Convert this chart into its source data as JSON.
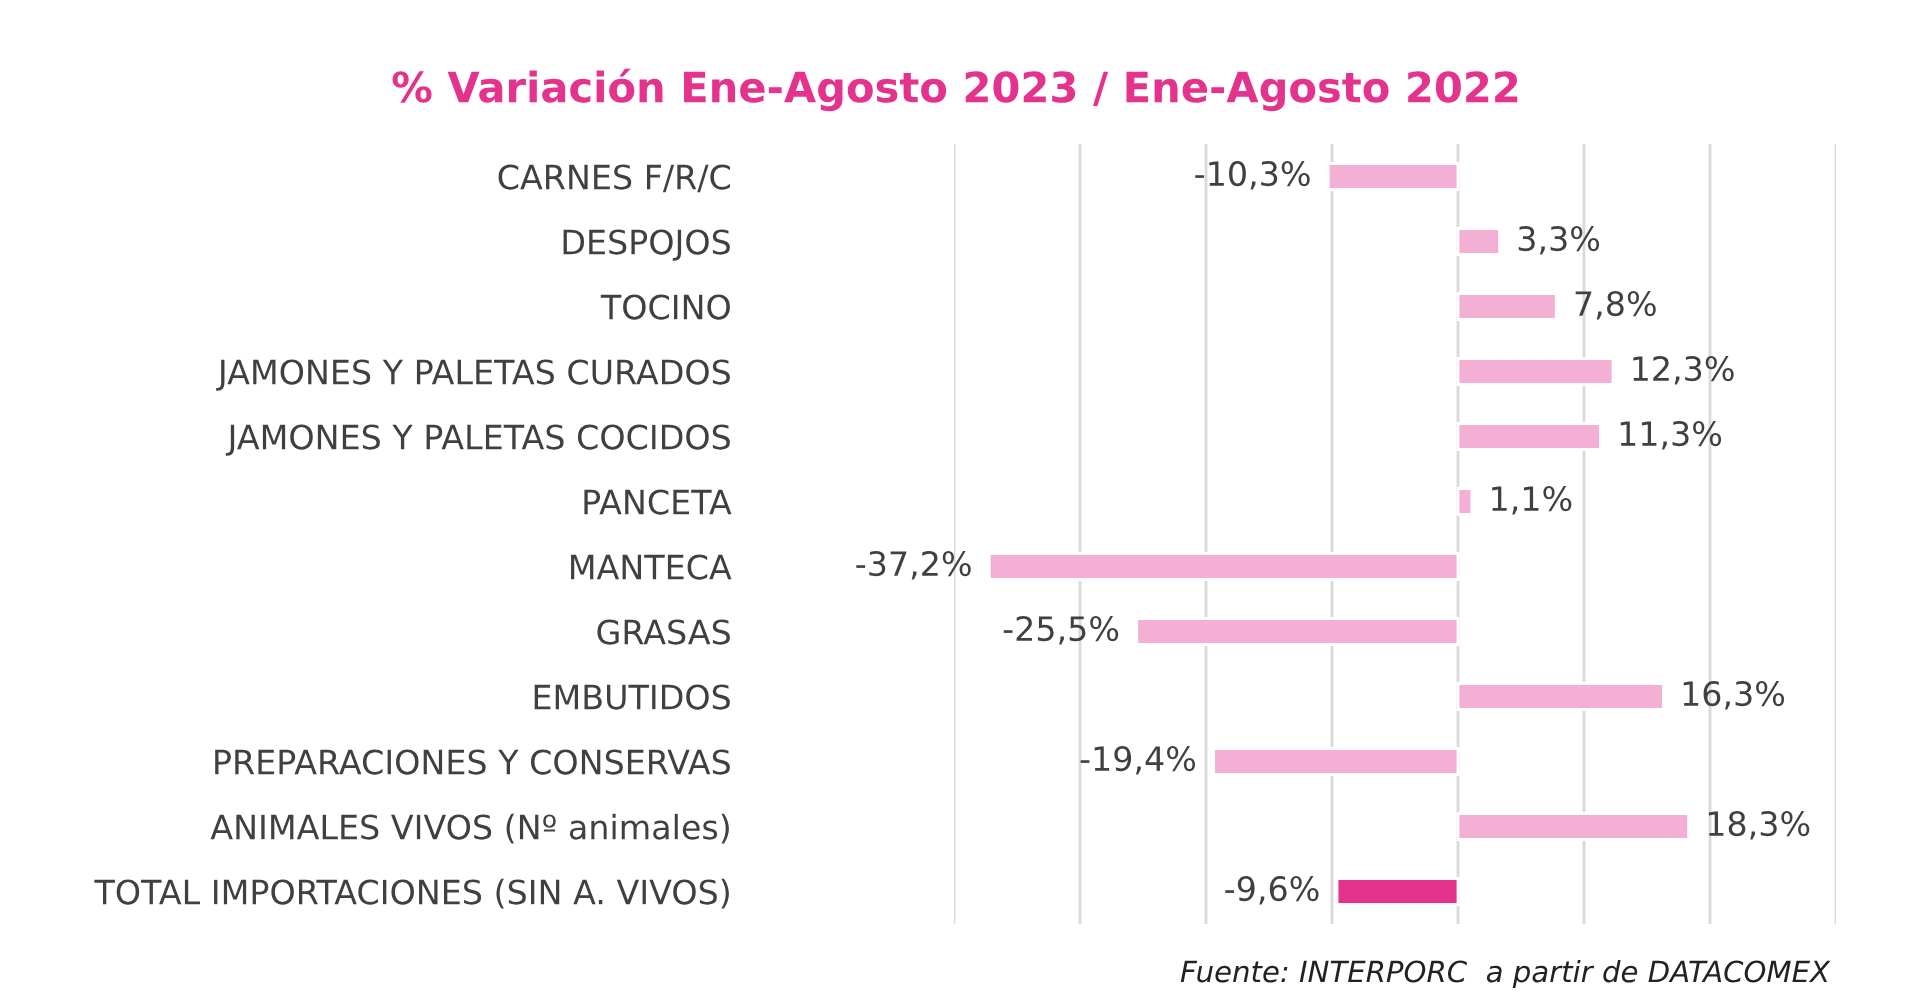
{
  "chart_data": {
    "type": "bar",
    "orientation": "horizontal",
    "title": "% Variación Ene-Agosto 2023 / Ene-Agosto 2022",
    "categories": [
      "CARNES F/R/C",
      "DESPOJOS",
      "TOCINO",
      "JAMONES Y PALETAS CURADOS",
      "JAMONES Y PALETAS COCIDOS",
      "PANCETA",
      "MANTECA",
      "GRASAS",
      "EMBUTIDOS",
      "PREPARACIONES Y CONSERVAS",
      "ANIMALES VIVOS (Nº animales)",
      "TOTAL IMPORTACIONES (SIN A. VIVOS)"
    ],
    "values": [
      -10.3,
      3.3,
      7.8,
      12.3,
      11.3,
      1.1,
      -37.2,
      -25.5,
      16.3,
      -19.4,
      18.3,
      -9.6
    ],
    "value_labels": [
      "-10,3%",
      "3,3%",
      "7,8%",
      "12,3%",
      "11,3%",
      "1,1%",
      "-37,2%",
      "-25,5%",
      "16,3%",
      "-19,4%",
      "18,3%",
      "-9,6%"
    ],
    "colors": [
      "#f4b0d4",
      "#f4b0d4",
      "#f4b0d4",
      "#f4b0d4",
      "#f4b0d4",
      "#f4b0d4",
      "#f4b0d4",
      "#f4b0d4",
      "#f4b0d4",
      "#f4b0d4",
      "#f4b0d4",
      "#e3338c"
    ],
    "xlim": [
      -40,
      30
    ],
    "xticks": [
      {
        "value": -40,
        "label": null
      },
      {
        "value": -30,
        "label": null
      },
      {
        "value": -20,
        "label": null
      },
      {
        "value": -10,
        "label": null
      },
      {
        "value": 0,
        "label": null
      },
      {
        "value": 10,
        "label": null
      },
      {
        "value": 20,
        "label": null
      },
      {
        "value": 30,
        "label": null
      }
    ],
    "grid": "x",
    "tick_labels": "y",
    "annotations": [
      "Fuente: INTERPORC  a partir de DATACOMEX"
    ]
  }
}
